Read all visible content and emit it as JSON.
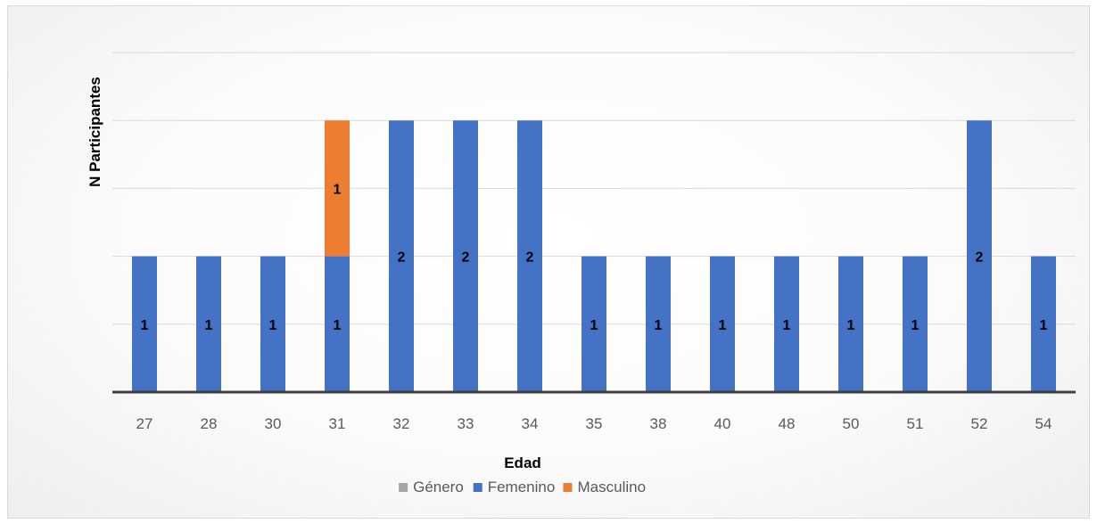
{
  "chart_data": {
    "type": "bar",
    "stacked": true,
    "title": "",
    "xlabel": "Edad",
    "ylabel": "N Participantes",
    "categories": [
      "27",
      "28",
      "30",
      "31",
      "32",
      "33",
      "34",
      "35",
      "38",
      "40",
      "48",
      "50",
      "51",
      "52",
      "54"
    ],
    "series": [
      {
        "name": "Género",
        "color": "#a5a5a5",
        "values": [
          0,
          0,
          0,
          0,
          0,
          0,
          0,
          0,
          0,
          0,
          0,
          0,
          0,
          0,
          0
        ],
        "labels": []
      },
      {
        "name": "Femenino",
        "color": "#4472c4",
        "values": [
          1,
          1,
          1,
          1,
          2,
          2,
          2,
          1,
          1,
          1,
          1,
          1,
          1,
          2,
          1
        ]
      },
      {
        "name": "Masculino",
        "color": "#ed7d31",
        "values": [
          0,
          0,
          0,
          1,
          0,
          0,
          0,
          0,
          0,
          0,
          0,
          0,
          0,
          0,
          0
        ]
      }
    ],
    "ylim": [
      0,
      2.5
    ],
    "grid": true,
    "legend_position": "bottom"
  }
}
